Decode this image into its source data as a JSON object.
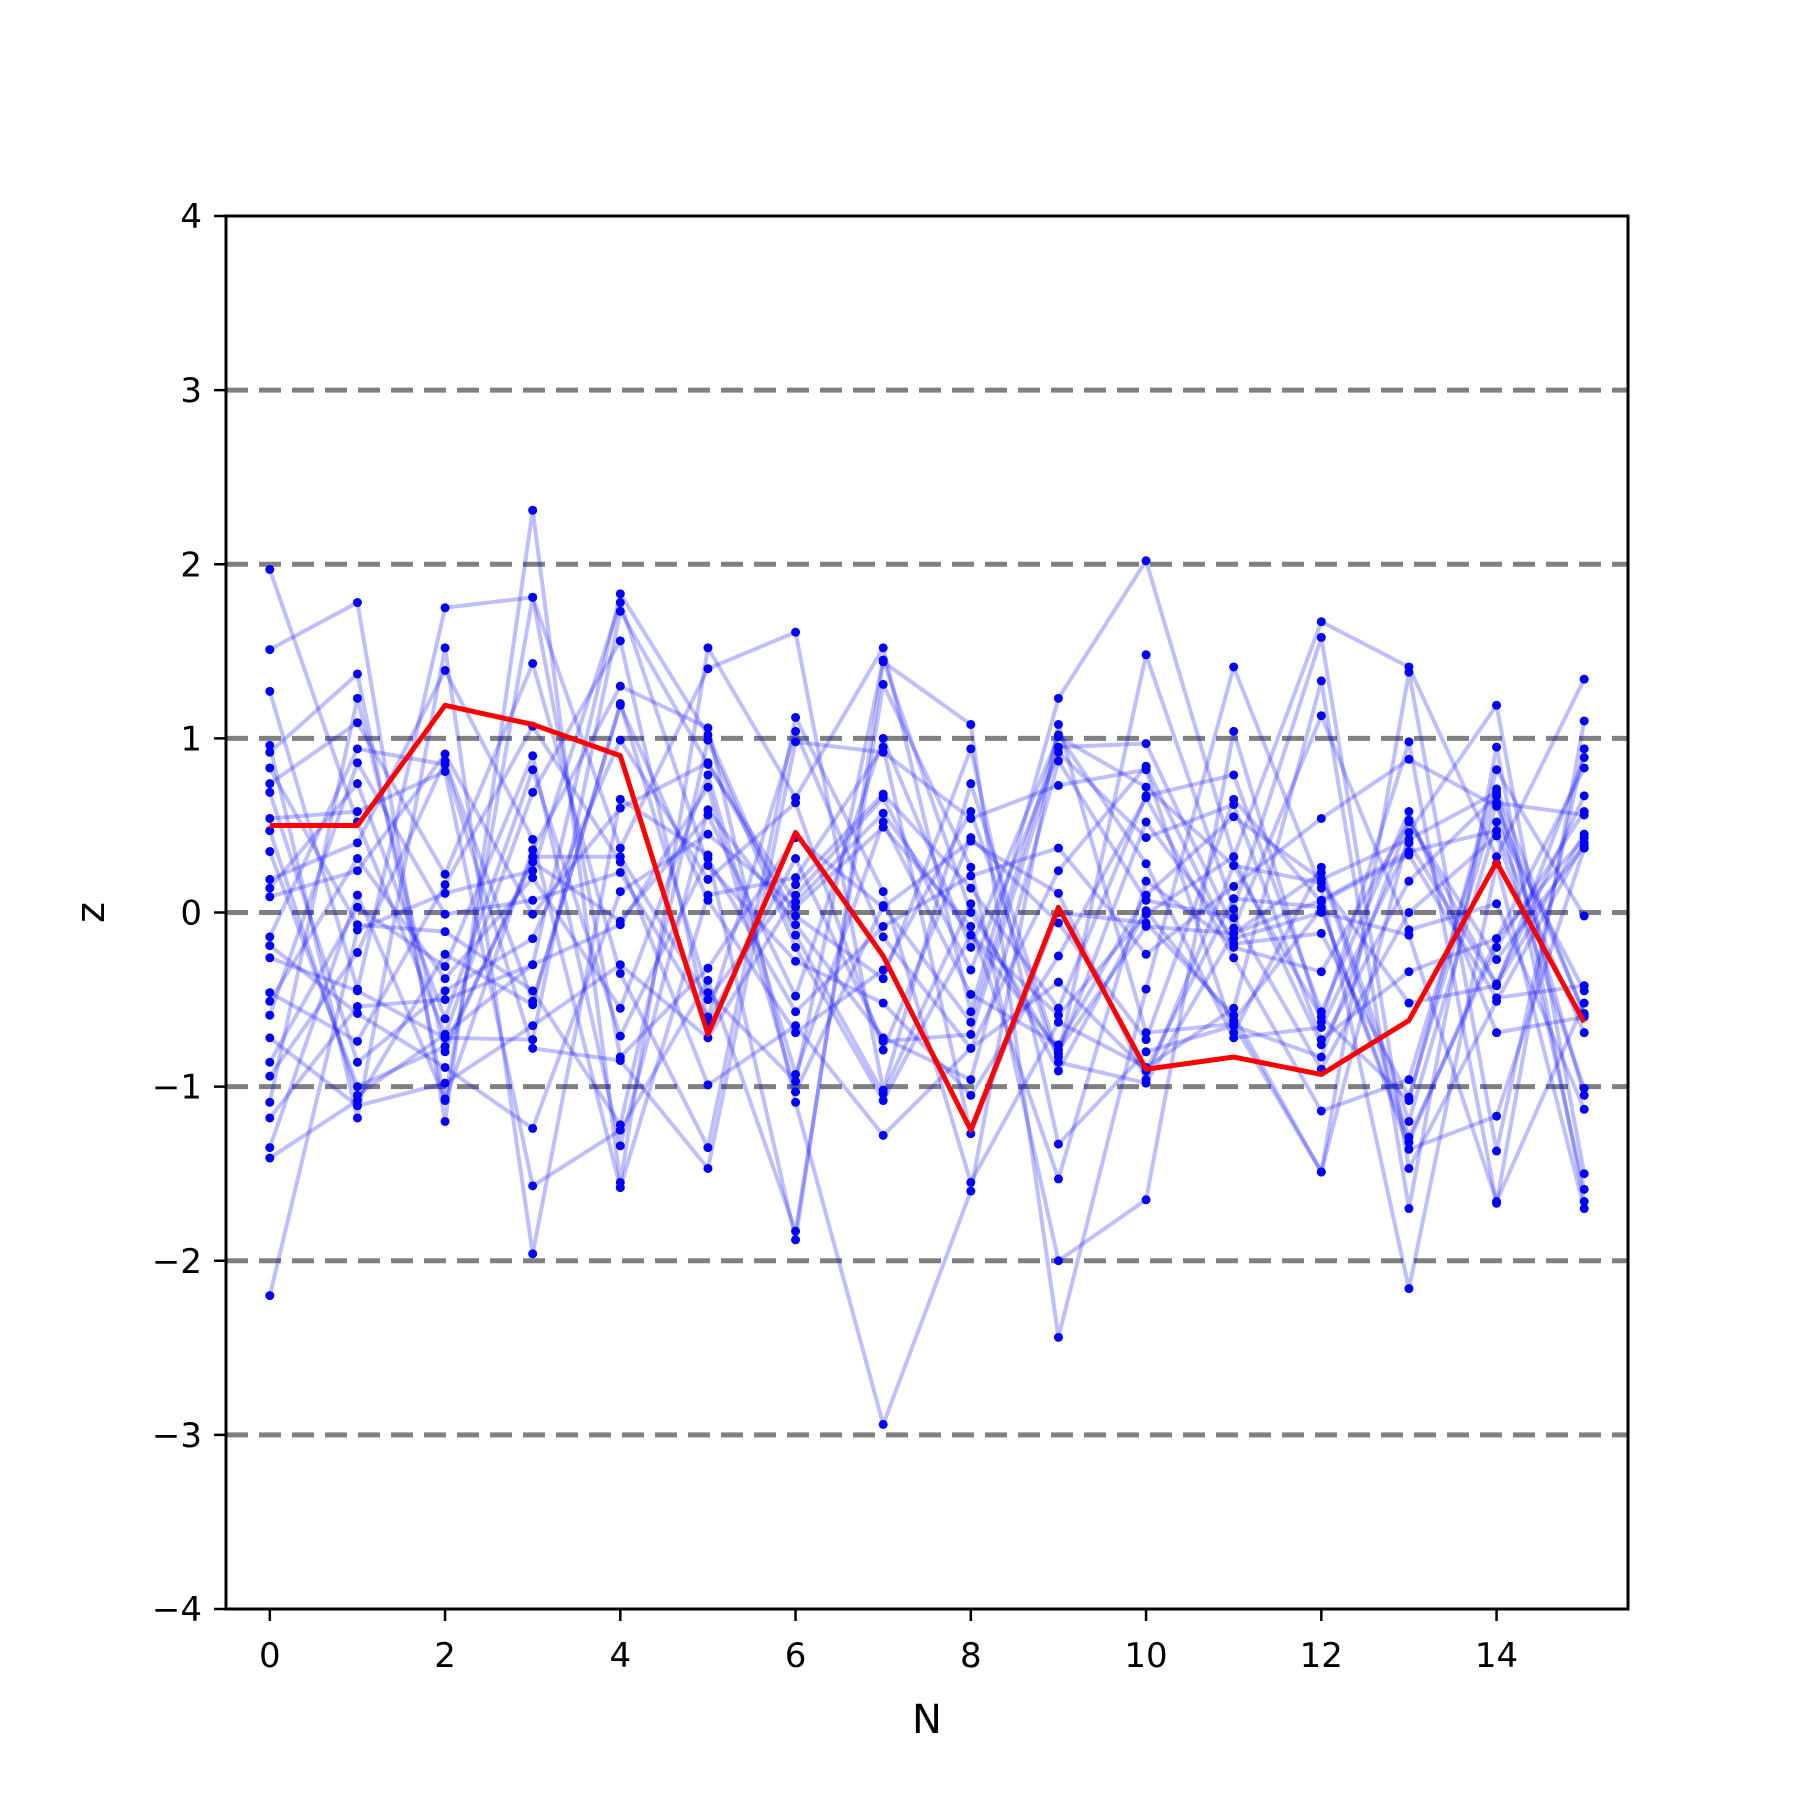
{
  "chart_data": {
    "type": "line",
    "xlabel": "N",
    "ylabel": "z",
    "xlim": [
      -0.5,
      15.5
    ],
    "ylim": [
      -4,
      4
    ],
    "x_ticks": [
      0,
      2,
      4,
      6,
      8,
      10,
      12,
      14
    ],
    "x_tick_labels": [
      "0",
      "2",
      "4",
      "6",
      "8",
      "10",
      "12",
      "14"
    ],
    "y_ticks": [
      -4,
      -3,
      -2,
      -1,
      0,
      1,
      2,
      3,
      4
    ],
    "y_tick_labels": [
      "−4",
      "−3",
      "−2",
      "−1",
      "0",
      "1",
      "2",
      "3",
      "4"
    ],
    "reference_lines": [
      -3,
      -2,
      -1,
      0,
      1,
      2,
      3
    ],
    "reference_line_style": {
      "color": "#808080",
      "dash": "dashed"
    },
    "x": [
      0,
      1,
      2,
      3,
      4,
      5,
      6,
      7,
      8,
      9,
      10,
      11,
      12,
      13,
      14,
      15
    ],
    "highlight_series": {
      "color": "#ff0000",
      "values": [
        0.5,
        0.5,
        1.19,
        1.08,
        0.9,
        -0.7,
        0.46,
        -0.25,
        -1.25,
        0.03,
        -0.9,
        -0.83,
        -0.93,
        -0.62,
        0.29,
        -0.63
      ]
    },
    "background_series_style": {
      "color": "#0000ff",
      "line_opacity": 0.25,
      "marker": "dot"
    },
    "background_series": [
      [
        1.97,
        0.52,
        -0.7,
        -0.3,
        1.83,
        1.02,
        -0.13,
        -1.04,
        0.05,
        -0.91,
        0.01,
        -0.62,
        0.02,
        -1.32,
        -0.15,
        0.43
      ],
      [
        -2.2,
        -0.1,
        0.11,
        0.24,
        1.78,
        0.27,
        -0.28,
        -0.52,
        -1.05,
        -0.25,
        0.66,
        -0.26,
        -1.14,
        -0.96,
        0.71,
        -0.59
      ],
      [
        1.51,
        1.78,
        -1.2,
        2.31,
        -1.55,
        1.52,
        0.66,
        1.52,
        -0.57,
        1.23,
        2.02,
        0.32,
        1.67,
        1.41,
        0.32,
        1.34
      ],
      [
        1.27,
        -0.44,
        1.75,
        1.81,
        0.37,
        1.4,
        1.61,
        -1.02,
        0.74,
        -0.83,
        1.48,
        0.02,
        1.58,
        -1.47,
        -0.51,
        0.4
      ],
      [
        0.96,
        -1.18,
        1.52,
        -1.96,
        0.65,
        0.33,
        -1.88,
        1.44,
        1.08,
        -2.44,
        -0.44,
        1.41,
        0.14,
        -2.16,
        0.28,
        -1.7
      ],
      [
        0.92,
        1.37,
        -1.08,
        0.36,
        1.3,
        1.06,
        -1.09,
        -2.94,
        -1.6,
        1.08,
        -0.69,
        -0.64,
        -1.49,
        1.38,
        -1.37,
        0.94
      ],
      [
        0.74,
        1.09,
        0.22,
        1.43,
        -0.35,
        -1.35,
        1.12,
        0.12,
        -1.55,
        -0.63,
        -0.89,
        -0.55,
        1.33,
        -1.7,
        0.95,
        -1.66
      ],
      [
        0.54,
        0.58,
        0.81,
        -1.57,
        -1.25,
        -0.39,
        -1.83,
        1.31,
        0.26,
        -2.0,
        -1.65,
        1.04,
        -0.63,
        0.98,
        -1.67,
        1.1
      ],
      [
        0.47,
        -1.05,
        -0.7,
        0.69,
        1.56,
        -0.63,
        0.31,
        -0.74,
        -0.7,
        0.95,
        0.97,
        -0.09,
        1.13,
        -0.1,
        0.05,
        -1.13
      ],
      [
        0.09,
        0.24,
        0.91,
        -0.01,
        0.6,
        0.86,
        -0.02,
        -0.38,
        0.94,
        -1.33,
        -0.8,
        -0.65,
        -0.83,
        0.53,
        -0.41,
        0.67
      ],
      [
        -0.14,
        0.94,
        0.85,
        -0.78,
        -0.85,
        -1.47,
        0.98,
        0.92,
        0.54,
        0.73,
        0.82,
        -0.69,
        0.26,
        -1.2,
        0.52,
        -0.45
      ],
      [
        -0.19,
        -0.58,
        -0.89,
        -1.24,
        0.12,
        0.45,
        0.03,
        0.49,
        -0.08,
        -1.53,
        0.18,
        -0.18,
        -0.12,
        -1.06,
        0.63,
        0.56
      ],
      [
        0.19,
        0.4,
        1.39,
        0.42,
        -1.58,
        0.1,
        0.2,
        0.95,
        -1.27,
        0.0,
        -0.06,
        -0.59,
        -1.49,
        0.46,
        1.19,
        -1.5
      ],
      [
        -0.46,
        -0.74,
        0.16,
        1.07,
        0.29,
        -0.99,
        -0.65,
        -1.28,
        -0.78,
        -0.4,
        -0.91,
        0.08,
        0.03,
        -1.36,
        -1.17,
        0.37
      ],
      [
        -0.51,
        0.31,
        -0.38,
        0.2,
        -0.55,
        0.79,
        -0.93,
        0.52,
        -0.47,
        -0.76,
        0.1,
        0.55,
        0.19,
        0.42,
        0.69,
        -1.05
      ],
      [
        -0.72,
        -1.11,
        -0.98,
        -0.65,
        -0.3,
        -0.72,
        0.1,
        0.66,
        -0.33,
        0.92,
        0.43,
        0.62,
        -0.73,
        -0.34,
        -0.15,
        0.83
      ],
      [
        -0.86,
        0.03,
        -0.31,
        0.9,
        -1.34,
        0.59,
        -0.07,
        -0.72,
        -0.96,
        0.87,
        0.07,
        -0.03,
        -0.9,
        0.0,
        0.44,
        -1.01
      ],
      [
        -0.94,
        -0.23,
        0.87,
        -0.51,
        1.19,
        0.07,
        -0.69,
        -0.33,
        0.58,
        -0.86,
        -0.98,
        -0.12,
        0.23,
        -1.29,
        -0.2,
        0.58
      ],
      [
        -1.09,
        1.23,
        -0.8,
        0.32,
        0.32,
        -0.5,
        0.16,
        0.68,
        0.14,
        -0.55,
        0.67,
        0.79,
        -0.57,
        0.58,
        -0.69,
        -0.6
      ],
      [
        -1.18,
        -0.54,
        -0.5,
        -0.3,
        -0.07,
        0.72,
        -1.03,
        0.04,
        -0.63,
        1.02,
        0.28,
        -0.72,
        -0.66,
        0.4,
        -0.42,
        0.89
      ],
      [
        -1.35,
        0.1,
        -1.07,
        1.81,
        -0.83,
        -0.32,
        0.43,
        0.03,
        0.41,
        0.11,
        -0.96,
        0.27,
        -0.6,
        -1.08,
        0.82,
        -0.02
      ],
      [
        -1.41,
        -1.08,
        -0.24,
        -0.53,
        1.2,
        -0.46,
        -0.97,
        1.45,
        0.0,
        -0.81,
        0.52,
        -0.15,
        0.0,
        -0.13,
        -1.66,
        -0.52
      ],
      [
        0.83,
        -0.07,
        -0.11,
        -0.45,
        -1.22,
        0.99,
        -0.2,
        -1.08,
        -0.13,
        -0.59,
        -0.01,
        0.32,
        -0.76,
        0.18,
        0.67,
        -1.59
      ],
      [
        -0.26,
        -0.45,
        -0.72,
        -0.73,
        1.73,
        0.85,
        0.06,
        0.57,
        -0.13,
        -0.79,
        -0.08,
        -0.12,
        0.07,
        0.35,
        0.47,
        -0.69
      ],
      [
        0.35,
        -1.0,
        -0.77,
        0.29,
        -0.05,
        0.56,
        -0.48,
        1.0,
        -0.2,
        1.01,
        0.72,
        0.27,
        0.17,
        -0.52,
        -0.42,
        0.45
      ],
      [
        -0.59,
        0.86,
        -0.01,
        0.07,
        0.23,
        -0.6,
        1.04,
        -0.14,
        -0.78,
        0.24,
        0.84,
        -0.2,
        -0.34,
        0.52,
        -0.27,
        0.38
      ],
      [
        0.14,
        0.74,
        -0.61,
        0.82,
        -0.71,
        0.31,
        -0.57,
        -0.08,
        0.21,
        0.37,
        -0.24,
        0.15,
        0.54,
        0.88,
        0.61,
        -0.58
      ],
      [
        0.69,
        -0.86,
        -0.45,
        -0.15,
        0.99,
        0.19,
        0.63,
        -0.79,
        0.43,
        -0.06,
        -0.73,
        0.65,
        0.06,
        0.33,
        -0.49,
        -0.42
      ]
    ]
  }
}
